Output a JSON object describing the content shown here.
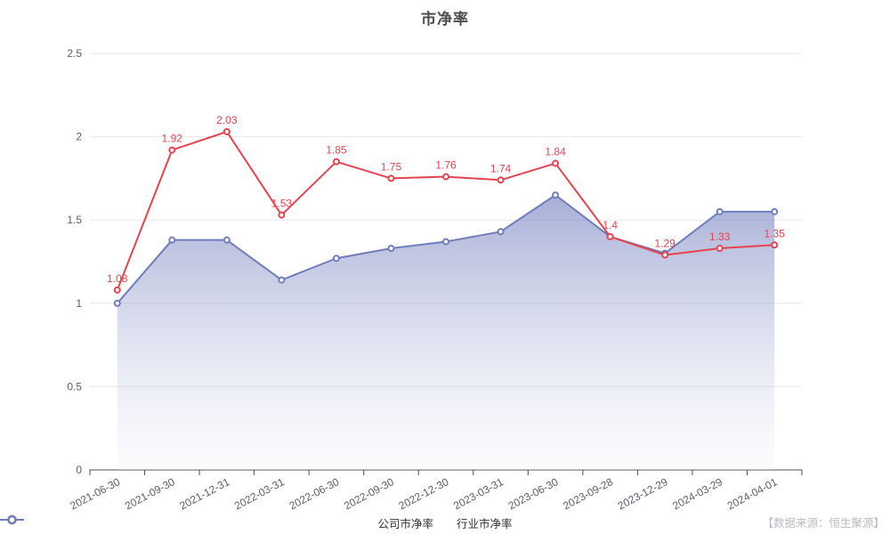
{
  "chart_data": {
    "type": "line",
    "title": "市净率",
    "categories": [
      "2021-06-30",
      "2021-09-30",
      "2021-12-31",
      "2022-03-31",
      "2022-06-30",
      "2022-09-30",
      "2022-12-30",
      "2023-03-31",
      "2023-06-30",
      "2023-09-28",
      "2023-12-29",
      "2024-03-29",
      "2024-04-01"
    ],
    "series": [
      {
        "id": "company-pb",
        "name": "公司市净率",
        "color": "#e6434e",
        "show_labels": true,
        "values": [
          1.08,
          1.92,
          2.03,
          1.53,
          1.85,
          1.75,
          1.76,
          1.74,
          1.84,
          1.4,
          1.29,
          1.33,
          1.35
        ]
      },
      {
        "id": "industry-pb",
        "name": "行业市净率",
        "color": "#707cbc",
        "show_labels": false,
        "area": true,
        "values": [
          1.0,
          1.38,
          1.38,
          1.14,
          1.27,
          1.33,
          1.37,
          1.43,
          1.65,
          1.4,
          1.3,
          1.55,
          1.55
        ]
      }
    ],
    "ylim": [
      0,
      2.5
    ],
    "ytick_step": 0.5,
    "yticks": [
      "0",
      "0.5",
      "1",
      "1.5",
      "2",
      "2.5"
    ],
    "grid": true,
    "legend_position": "bottom",
    "x_label_rotation_deg": 28,
    "style": {
      "grid_line": "#e3e7ef",
      "axis_line": "#4d4d4d",
      "axis_text": "#5c6067",
      "title_text": "#4c4c4c",
      "source_text": "#b9bcc2",
      "area_top": "rgba(112,124,188,0.62)",
      "area_bottom": "rgba(243,244,250,0.25)",
      "background": "#ffffff"
    }
  },
  "footer": {
    "source": "【数据来源：恒生聚源】"
  }
}
